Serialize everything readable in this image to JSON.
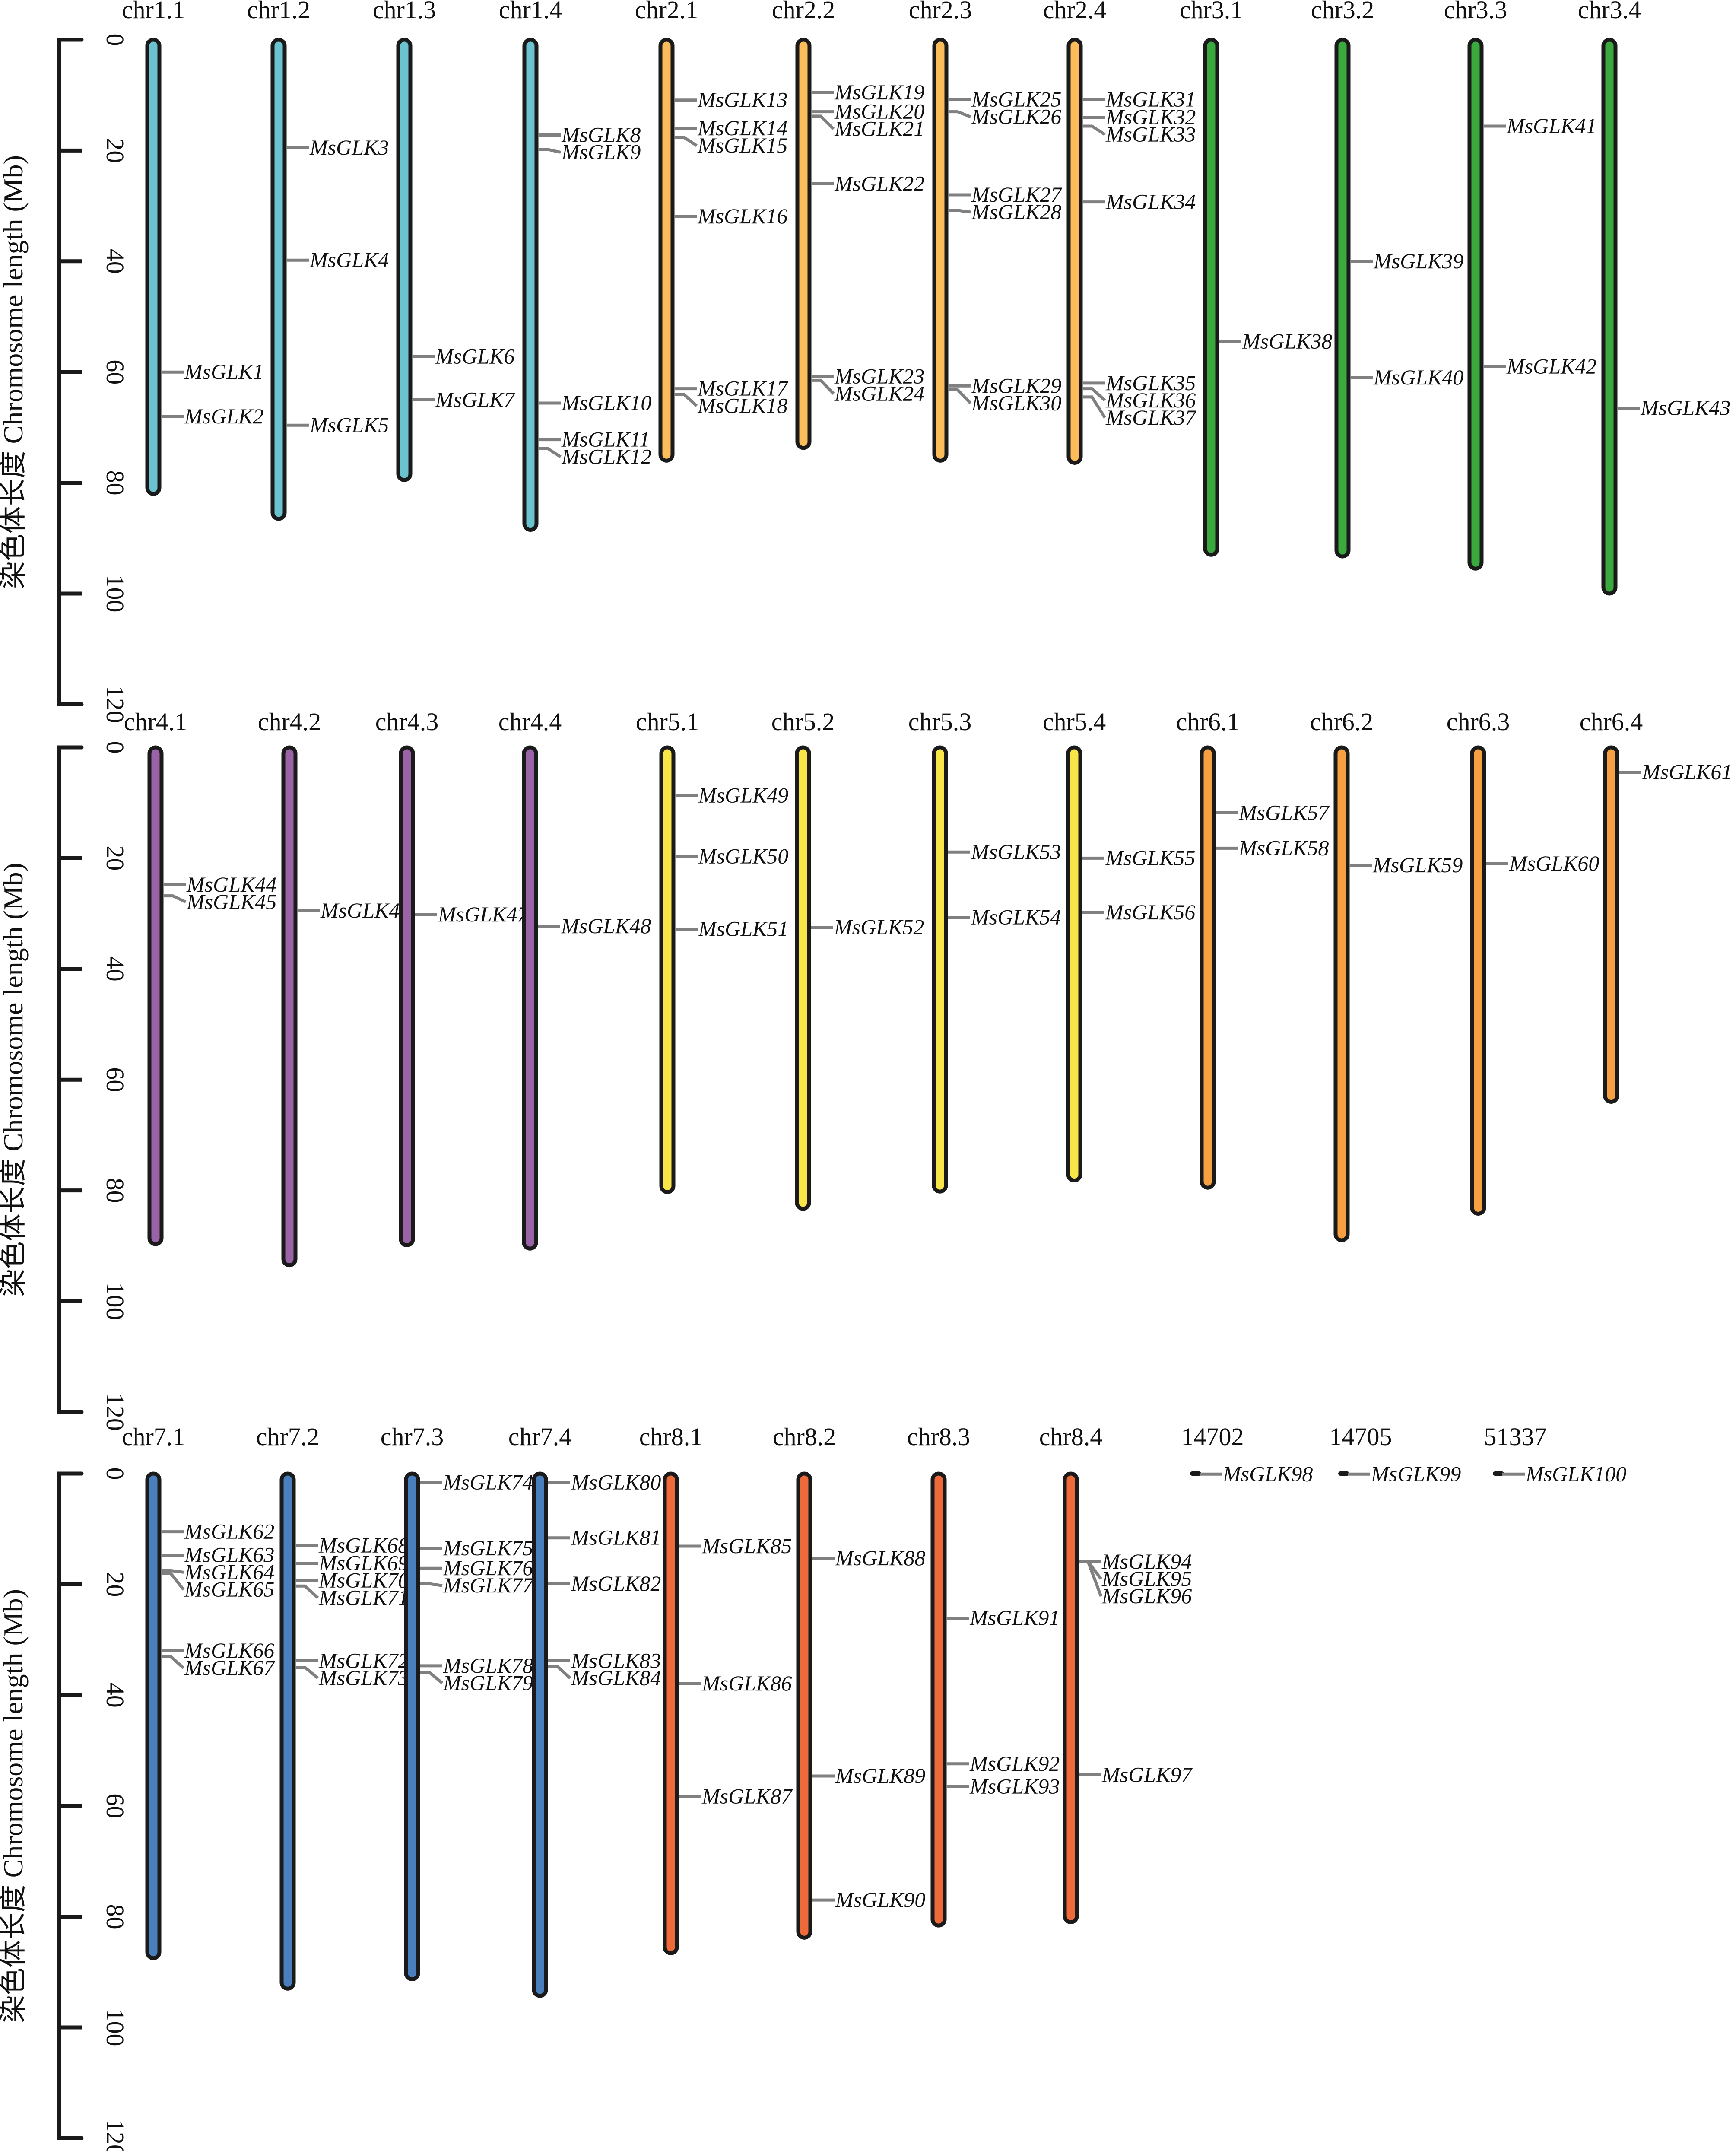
{
  "chart_data": {
    "type": "chromosome-map",
    "title": "",
    "ylabel": "染色体长度 Chromosome length (Mb)",
    "ylim": [
      0,
      120
    ],
    "yticks": [
      0,
      20,
      40,
      60,
      80,
      100,
      120
    ],
    "gene_line_color": "#808080",
    "outline_color": "#1a1a1a",
    "colors": {
      "chr1": "#6cc3d0",
      "chr2": "#fbbc5c",
      "chr3": "#3aaa3f",
      "chr4": "#9a63a8",
      "chr5": "#f8e548",
      "chr6": "#f7a042",
      "chr7": "#4a7fbe",
      "chr8": "#ee6a3a",
      "scaffold": "#1a1a1a"
    },
    "rows": [
      {
        "chromosomes": [
          {
            "name": "chr1.1",
            "group": "chr1",
            "length": 82,
            "genes": [
              {
                "id": "MsGLK1",
                "pos": 60
              },
              {
                "id": "MsGLK2",
                "pos": 68
              }
            ]
          },
          {
            "name": "chr1.2",
            "group": "chr1",
            "length": 86.5,
            "genes": [
              {
                "id": "MsGLK3",
                "pos": 19.5
              },
              {
                "id": "MsGLK4",
                "pos": 39.8
              },
              {
                "id": "MsGLK5",
                "pos": 69.6
              }
            ]
          },
          {
            "name": "chr1.3",
            "group": "chr1",
            "length": 79.5,
            "genes": [
              {
                "id": "MsGLK6",
                "pos": 57.2
              },
              {
                "id": "MsGLK7",
                "pos": 65
              }
            ]
          },
          {
            "name": "chr1.4",
            "group": "chr1",
            "length": 88.5,
            "genes": [
              {
                "id": "MsGLK8",
                "pos": 17.2
              },
              {
                "id": "MsGLK9",
                "pos": 19.8
              },
              {
                "id": "MsGLK10",
                "pos": 65.6
              },
              {
                "id": "MsGLK11",
                "pos": 72.2
              },
              {
                "id": "MsGLK12",
                "pos": 73.8
              }
            ]
          },
          {
            "name": "chr2.1",
            "group": "chr2",
            "length": 76,
            "genes": [
              {
                "id": "MsGLK13",
                "pos": 10.9
              },
              {
                "id": "MsGLK14",
                "pos": 16
              },
              {
                "id": "MsGLK15",
                "pos": 17.6
              },
              {
                "id": "MsGLK16",
                "pos": 31.9
              },
              {
                "id": "MsGLK17",
                "pos": 63
              },
              {
                "id": "MsGLK18",
                "pos": 64
              }
            ]
          },
          {
            "name": "chr2.2",
            "group": "chr2",
            "length": 73.7,
            "genes": [
              {
                "id": "MsGLK19",
                "pos": 9.5
              },
              {
                "id": "MsGLK20",
                "pos": 13
              },
              {
                "id": "MsGLK21",
                "pos": 13.8
              },
              {
                "id": "MsGLK22",
                "pos": 26
              },
              {
                "id": "MsGLK23",
                "pos": 60.8
              },
              {
                "id": "MsGLK24",
                "pos": 61.5
              }
            ]
          },
          {
            "name": "chr2.3",
            "group": "chr2",
            "length": 76,
            "genes": [
              {
                "id": "MsGLK25",
                "pos": 10.8
              },
              {
                "id": "MsGLK26",
                "pos": 13
              },
              {
                "id": "MsGLK27",
                "pos": 28
              },
              {
                "id": "MsGLK28",
                "pos": 30.8
              },
              {
                "id": "MsGLK29",
                "pos": 62.5
              },
              {
                "id": "MsGLK30",
                "pos": 63.2
              }
            ]
          },
          {
            "name": "chr2.4",
            "group": "chr2",
            "length": 76.4,
            "genes": [
              {
                "id": "MsGLK31",
                "pos": 10.8
              },
              {
                "id": "MsGLK32",
                "pos": 14
              },
              {
                "id": "MsGLK33",
                "pos": 15.6
              },
              {
                "id": "MsGLK34",
                "pos": 29.3
              },
              {
                "id": "MsGLK35",
                "pos": 62
              },
              {
                "id": "MsGLK36",
                "pos": 63
              },
              {
                "id": "MsGLK37",
                "pos": 64.5
              }
            ]
          },
          {
            "name": "chr3.1",
            "group": "chr3",
            "length": 93,
            "genes": [
              {
                "id": "MsGLK38",
                "pos": 54.5
              }
            ]
          },
          {
            "name": "chr3.2",
            "group": "chr3",
            "length": 93.3,
            "genes": [
              {
                "id": "MsGLK39",
                "pos": 40
              },
              {
                "id": "MsGLK40",
                "pos": 61
              }
            ]
          },
          {
            "name": "chr3.3",
            "group": "chr3",
            "length": 95.5,
            "genes": [
              {
                "id": "MsGLK41",
                "pos": 15.6
              },
              {
                "id": "MsGLK42",
                "pos": 59
              }
            ]
          },
          {
            "name": "chr3.4",
            "group": "chr3",
            "length": 100,
            "genes": [
              {
                "id": "MsGLK43",
                "pos": 66.5
              }
            ]
          }
        ]
      },
      {
        "chromosomes": [
          {
            "name": "chr4.1",
            "group": "chr4",
            "length": 89.7,
            "genes": [
              {
                "id": "MsGLK44",
                "pos": 24.8
              },
              {
                "id": "MsGLK45",
                "pos": 26.8
              }
            ]
          },
          {
            "name": "chr4.2",
            "group": "chr4",
            "length": 93.5,
            "genes": [
              {
                "id": "MsGLK46",
                "pos": 29.5
              }
            ]
          },
          {
            "name": "chr4.3",
            "group": "chr4",
            "length": 89.9,
            "genes": [
              {
                "id": "MsGLK47",
                "pos": 30.2
              }
            ]
          },
          {
            "name": "chr4.4",
            "group": "chr4",
            "length": 90.5,
            "genes": [
              {
                "id": "MsGLK48",
                "pos": 32.3
              }
            ]
          },
          {
            "name": "chr5.1",
            "group": "chr5",
            "length": 80.3,
            "genes": [
              {
                "id": "MsGLK49",
                "pos": 8.7
              },
              {
                "id": "MsGLK50",
                "pos": 19.7
              },
              {
                "id": "MsGLK51",
                "pos": 32.8
              }
            ]
          },
          {
            "name": "chr5.2",
            "group": "chr5",
            "length": 83.3,
            "genes": [
              {
                "id": "MsGLK52",
                "pos": 32.5
              }
            ]
          },
          {
            "name": "chr5.3",
            "group": "chr5",
            "length": 80.2,
            "genes": [
              {
                "id": "MsGLK53",
                "pos": 18.9
              },
              {
                "id": "MsGLK54",
                "pos": 30.7
              }
            ]
          },
          {
            "name": "chr5.4",
            "group": "chr5",
            "length": 78.2,
            "genes": [
              {
                "id": "MsGLK55",
                "pos": 20
              },
              {
                "id": "MsGLK56",
                "pos": 29.8
              }
            ]
          },
          {
            "name": "chr6.1",
            "group": "chr6",
            "length": 79.5,
            "genes": [
              {
                "id": "MsGLK57",
                "pos": 11.8
              },
              {
                "id": "MsGLK58",
                "pos": 18.2
              }
            ]
          },
          {
            "name": "chr6.2",
            "group": "chr6",
            "length": 89,
            "genes": [
              {
                "id": "MsGLK59",
                "pos": 21.3
              }
            ]
          },
          {
            "name": "chr6.3",
            "group": "chr6",
            "length": 84.2,
            "genes": [
              {
                "id": "MsGLK60",
                "pos": 21
              }
            ]
          },
          {
            "name": "chr6.4",
            "group": "chr6",
            "length": 64,
            "genes": [
              {
                "id": "MsGLK61",
                "pos": 4.5
              }
            ]
          }
        ]
      },
      {
        "chromosomes": [
          {
            "name": "chr7.1",
            "group": "chr7",
            "length": 87.5,
            "genes": [
              {
                "id": "MsGLK62",
                "pos": 10.5
              },
              {
                "id": "MsGLK63",
                "pos": 14.7
              },
              {
                "id": "MsGLK64",
                "pos": 17.5
              },
              {
                "id": "MsGLK65",
                "pos": 18
              },
              {
                "id": "MsGLK66",
                "pos": 32
              },
              {
                "id": "MsGLK67",
                "pos": 33
              }
            ]
          },
          {
            "name": "chr7.2",
            "group": "chr7",
            "length": 93,
            "genes": [
              {
                "id": "MsGLK68",
                "pos": 13
              },
              {
                "id": "MsGLK69",
                "pos": 16.2
              },
              {
                "id": "MsGLK70",
                "pos": 19.3
              },
              {
                "id": "MsGLK71",
                "pos": 20.3
              },
              {
                "id": "MsGLK72",
                "pos": 33.8
              },
              {
                "id": "MsGLK73",
                "pos": 35
              }
            ]
          },
          {
            "name": "chr7.3",
            "group": "chr7",
            "length": 91.3,
            "genes": [
              {
                "id": "MsGLK74",
                "pos": 1.6
              },
              {
                "id": "MsGLK75",
                "pos": 13.5
              },
              {
                "id": "MsGLK76",
                "pos": 17.1
              },
              {
                "id": "MsGLK77",
                "pos": 19.9
              },
              {
                "id": "MsGLK78",
                "pos": 34.7
              },
              {
                "id": "MsGLK79",
                "pos": 35.9
              }
            ]
          },
          {
            "name": "chr7.4",
            "group": "chr7",
            "length": 94.3,
            "genes": [
              {
                "id": "MsGLK80",
                "pos": 1.6
              },
              {
                "id": "MsGLK81",
                "pos": 11.6
              },
              {
                "id": "MsGLK82",
                "pos": 19.9
              },
              {
                "id": "MsGLK83",
                "pos": 33.8
              },
              {
                "id": "MsGLK84",
                "pos": 34.8
              }
            ]
          },
          {
            "name": "chr8.1",
            "group": "chr8",
            "length": 86.6,
            "genes": [
              {
                "id": "MsGLK85",
                "pos": 13.1
              },
              {
                "id": "MsGLK86",
                "pos": 37.9
              },
              {
                "id": "MsGLK87",
                "pos": 58.3
              }
            ]
          },
          {
            "name": "chr8.2",
            "group": "chr8",
            "length": 83.8,
            "genes": [
              {
                "id": "MsGLK88",
                "pos": 15.3
              },
              {
                "id": "MsGLK89",
                "pos": 54.6
              },
              {
                "id": "MsGLK90",
                "pos": 77
              }
            ]
          },
          {
            "name": "chr8.3",
            "group": "chr8",
            "length": 81.6,
            "genes": [
              {
                "id": "MsGLK91",
                "pos": 26.1
              },
              {
                "id": "MsGLK92",
                "pos": 52.4
              },
              {
                "id": "MsGLK93",
                "pos": 56.5
              }
            ]
          },
          {
            "name": "chr8.4",
            "group": "chr8",
            "length": 81,
            "genes": [
              {
                "id": "MsGLK94",
                "pos": 15.9
              },
              {
                "id": "MsGLK95",
                "pos": 15.9
              },
              {
                "id": "MsGLK96",
                "pos": 15.9
              },
              {
                "id": "MsGLK97",
                "pos": 54.4
              }
            ]
          },
          {
            "name": "14702",
            "group": "scaffold",
            "length": 0.3,
            "genes": [
              {
                "id": "MsGLK98",
                "pos": 0.1
              }
            ]
          },
          {
            "name": "14705",
            "group": "scaffold",
            "length": 0.3,
            "genes": [
              {
                "id": "MsGLK99",
                "pos": 0.1
              }
            ]
          },
          {
            "name": "51337",
            "group": "scaffold",
            "length": 0.3,
            "genes": [
              {
                "id": "MsGLK100",
                "pos": 0.1
              }
            ]
          }
        ]
      }
    ]
  }
}
